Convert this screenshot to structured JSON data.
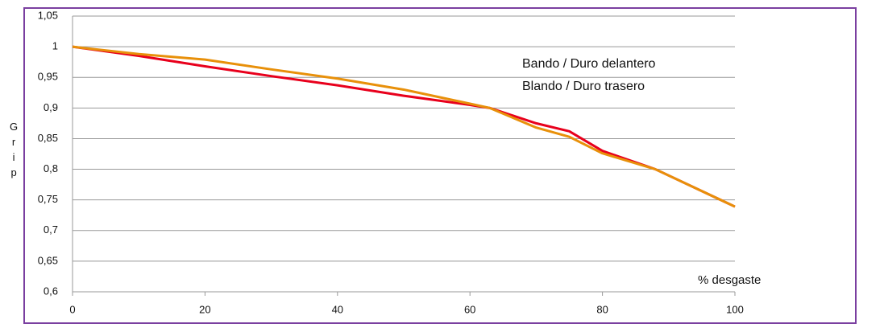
{
  "chart_data": {
    "type": "line",
    "x_label": "% desgaste",
    "y_label": "Grip",
    "x": [
      0,
      10,
      20,
      30,
      40,
      50,
      60,
      63,
      70,
      75,
      80,
      88,
      100
    ],
    "series": [
      {
        "name": "Bando / Duro delantero",
        "color": "#e8001c",
        "values": [
          1,
          0.985,
          0.968,
          0.952,
          0.937,
          0.92,
          0.905,
          0.9,
          0.875,
          0.862,
          0.83,
          0.8,
          0.739
        ]
      },
      {
        "name": "Blando / Duro trasero",
        "color": "#e8900a",
        "values": [
          1,
          0.988,
          0.979,
          0.963,
          0.948,
          0.93,
          0.907,
          0.9,
          0.868,
          0.853,
          0.826,
          0.8,
          0.739
        ]
      }
    ],
    "xlim": [
      0,
      100
    ],
    "xticks": [
      0,
      20,
      40,
      60,
      80,
      100
    ],
    "ylim": [
      0.6,
      1.05
    ],
    "yticks": [
      {
        "value": 0.6,
        "label": "0,6"
      },
      {
        "value": 0.65,
        "label": "0,65"
      },
      {
        "value": 0.7,
        "label": "0,7"
      },
      {
        "value": 0.75,
        "label": "0,75"
      },
      {
        "value": 0.8,
        "label": "0,8"
      },
      {
        "value": 0.85,
        "label": "0,85"
      },
      {
        "value": 0.9,
        "label": "0,9"
      },
      {
        "value": 0.95,
        "label": "0,95"
      },
      1,
      {
        "value": 1.05,
        "label": "1,05"
      }
    ],
    "grid": true
  }
}
